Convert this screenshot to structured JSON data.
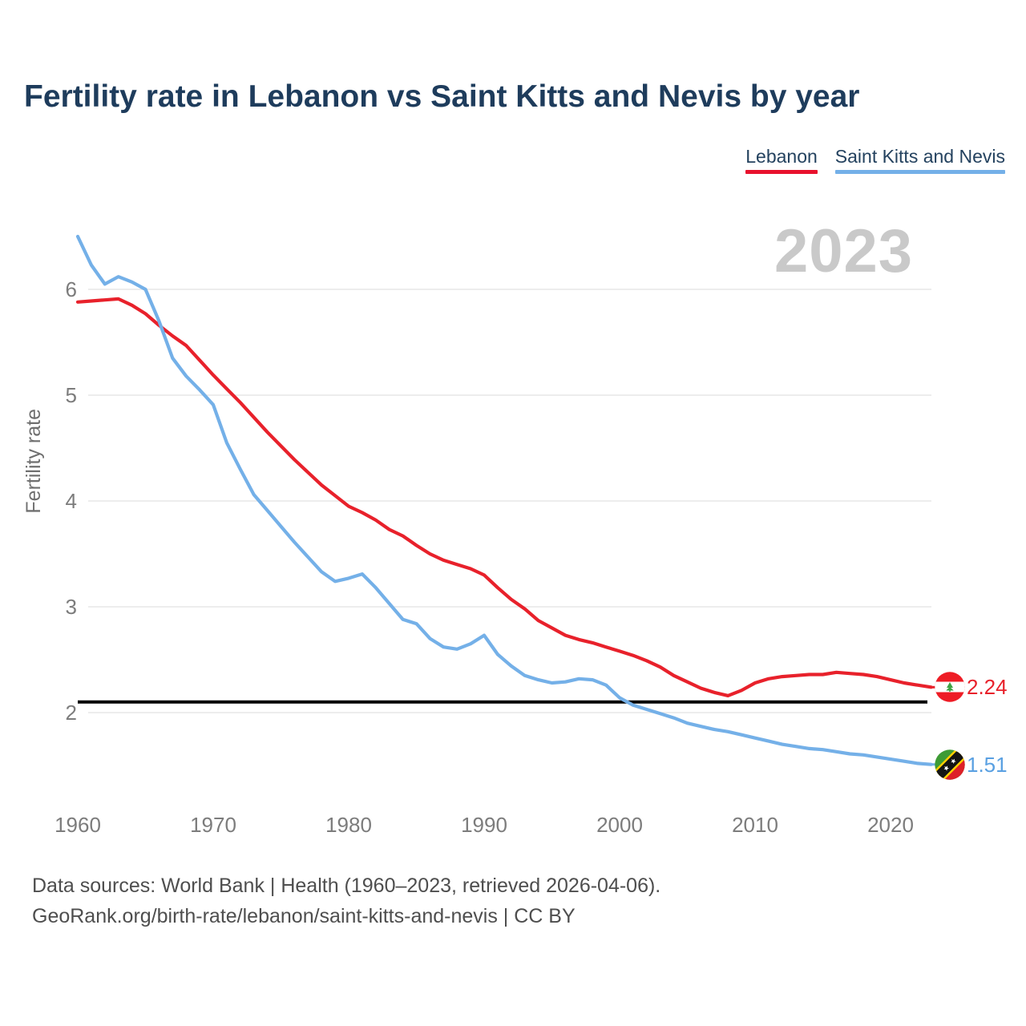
{
  "watermark": "2023",
  "chart_data": {
    "type": "line",
    "title": "Fertility rate in Lebanon vs Saint Kitts and Nevis by year",
    "xlabel": "",
    "ylabel": "Fertility rate",
    "xlim": [
      1960,
      2023
    ],
    "ylim": [
      1.4,
      6.6
    ],
    "grid": true,
    "legend_position": "top-right",
    "reference_line": 2.1,
    "yticks": [
      6,
      5,
      4,
      3,
      2
    ],
    "xticks": [
      1960,
      1970,
      1980,
      1990,
      2000,
      2010,
      2020
    ],
    "x": [
      1960,
      1961,
      1962,
      1963,
      1964,
      1965,
      1966,
      1967,
      1968,
      1969,
      1970,
      1971,
      1972,
      1973,
      1974,
      1975,
      1976,
      1977,
      1978,
      1979,
      1980,
      1981,
      1982,
      1983,
      1984,
      1985,
      1986,
      1987,
      1988,
      1989,
      1990,
      1991,
      1992,
      1993,
      1994,
      1995,
      1996,
      1997,
      1998,
      1999,
      2000,
      2001,
      2002,
      2003,
      2004,
      2005,
      2006,
      2007,
      2008,
      2009,
      2010,
      2011,
      2012,
      2013,
      2014,
      2015,
      2016,
      2017,
      2018,
      2019,
      2020,
      2021,
      2022,
      2023
    ],
    "series": [
      {
        "name": "Lebanon",
        "color": "#e8212b",
        "legend_color": "#e8112d",
        "label_color": "#e8212b",
        "end_label": "2.24",
        "values": [
          5.88,
          5.89,
          5.9,
          5.91,
          5.85,
          5.77,
          5.66,
          5.56,
          5.47,
          5.33,
          5.19,
          5.06,
          4.93,
          4.79,
          4.65,
          4.52,
          4.39,
          4.27,
          4.15,
          4.05,
          3.95,
          3.89,
          3.82,
          3.73,
          3.67,
          3.58,
          3.5,
          3.44,
          3.4,
          3.36,
          3.3,
          3.18,
          3.07,
          2.98,
          2.87,
          2.8,
          2.73,
          2.69,
          2.66,
          2.62,
          2.58,
          2.54,
          2.49,
          2.43,
          2.35,
          2.29,
          2.23,
          2.19,
          2.16,
          2.21,
          2.28,
          2.32,
          2.34,
          2.35,
          2.36,
          2.36,
          2.38,
          2.37,
          2.36,
          2.34,
          2.31,
          2.28,
          2.26,
          2.24
        ]
      },
      {
        "name": "Saint Kitts and Nevis",
        "color": "#74b0e8",
        "legend_color": "#74b0e8",
        "label_color": "#59a0e2",
        "end_label": "1.51",
        "values": [
          6.5,
          6.23,
          6.05,
          6.12,
          6.07,
          6.0,
          5.7,
          5.35,
          5.18,
          5.05,
          4.91,
          4.55,
          4.3,
          4.06,
          3.91,
          3.76,
          3.61,
          3.47,
          3.33,
          3.24,
          3.27,
          3.31,
          3.18,
          3.03,
          2.88,
          2.84,
          2.7,
          2.62,
          2.6,
          2.65,
          2.73,
          2.55,
          2.44,
          2.35,
          2.31,
          2.28,
          2.29,
          2.32,
          2.31,
          2.26,
          2.14,
          2.07,
          2.03,
          1.99,
          1.95,
          1.9,
          1.87,
          1.84,
          1.82,
          1.79,
          1.76,
          1.73,
          1.7,
          1.68,
          1.66,
          1.65,
          1.63,
          1.61,
          1.6,
          1.58,
          1.56,
          1.54,
          1.52,
          1.51
        ]
      }
    ]
  },
  "footer": {
    "line1": "Data sources: World Bank | Health (1960–2023, retrieved 2026-04-06).",
    "line2": "GeoRank.org/birth-rate/lebanon/saint-kitts-and-nevis | CC BY"
  }
}
